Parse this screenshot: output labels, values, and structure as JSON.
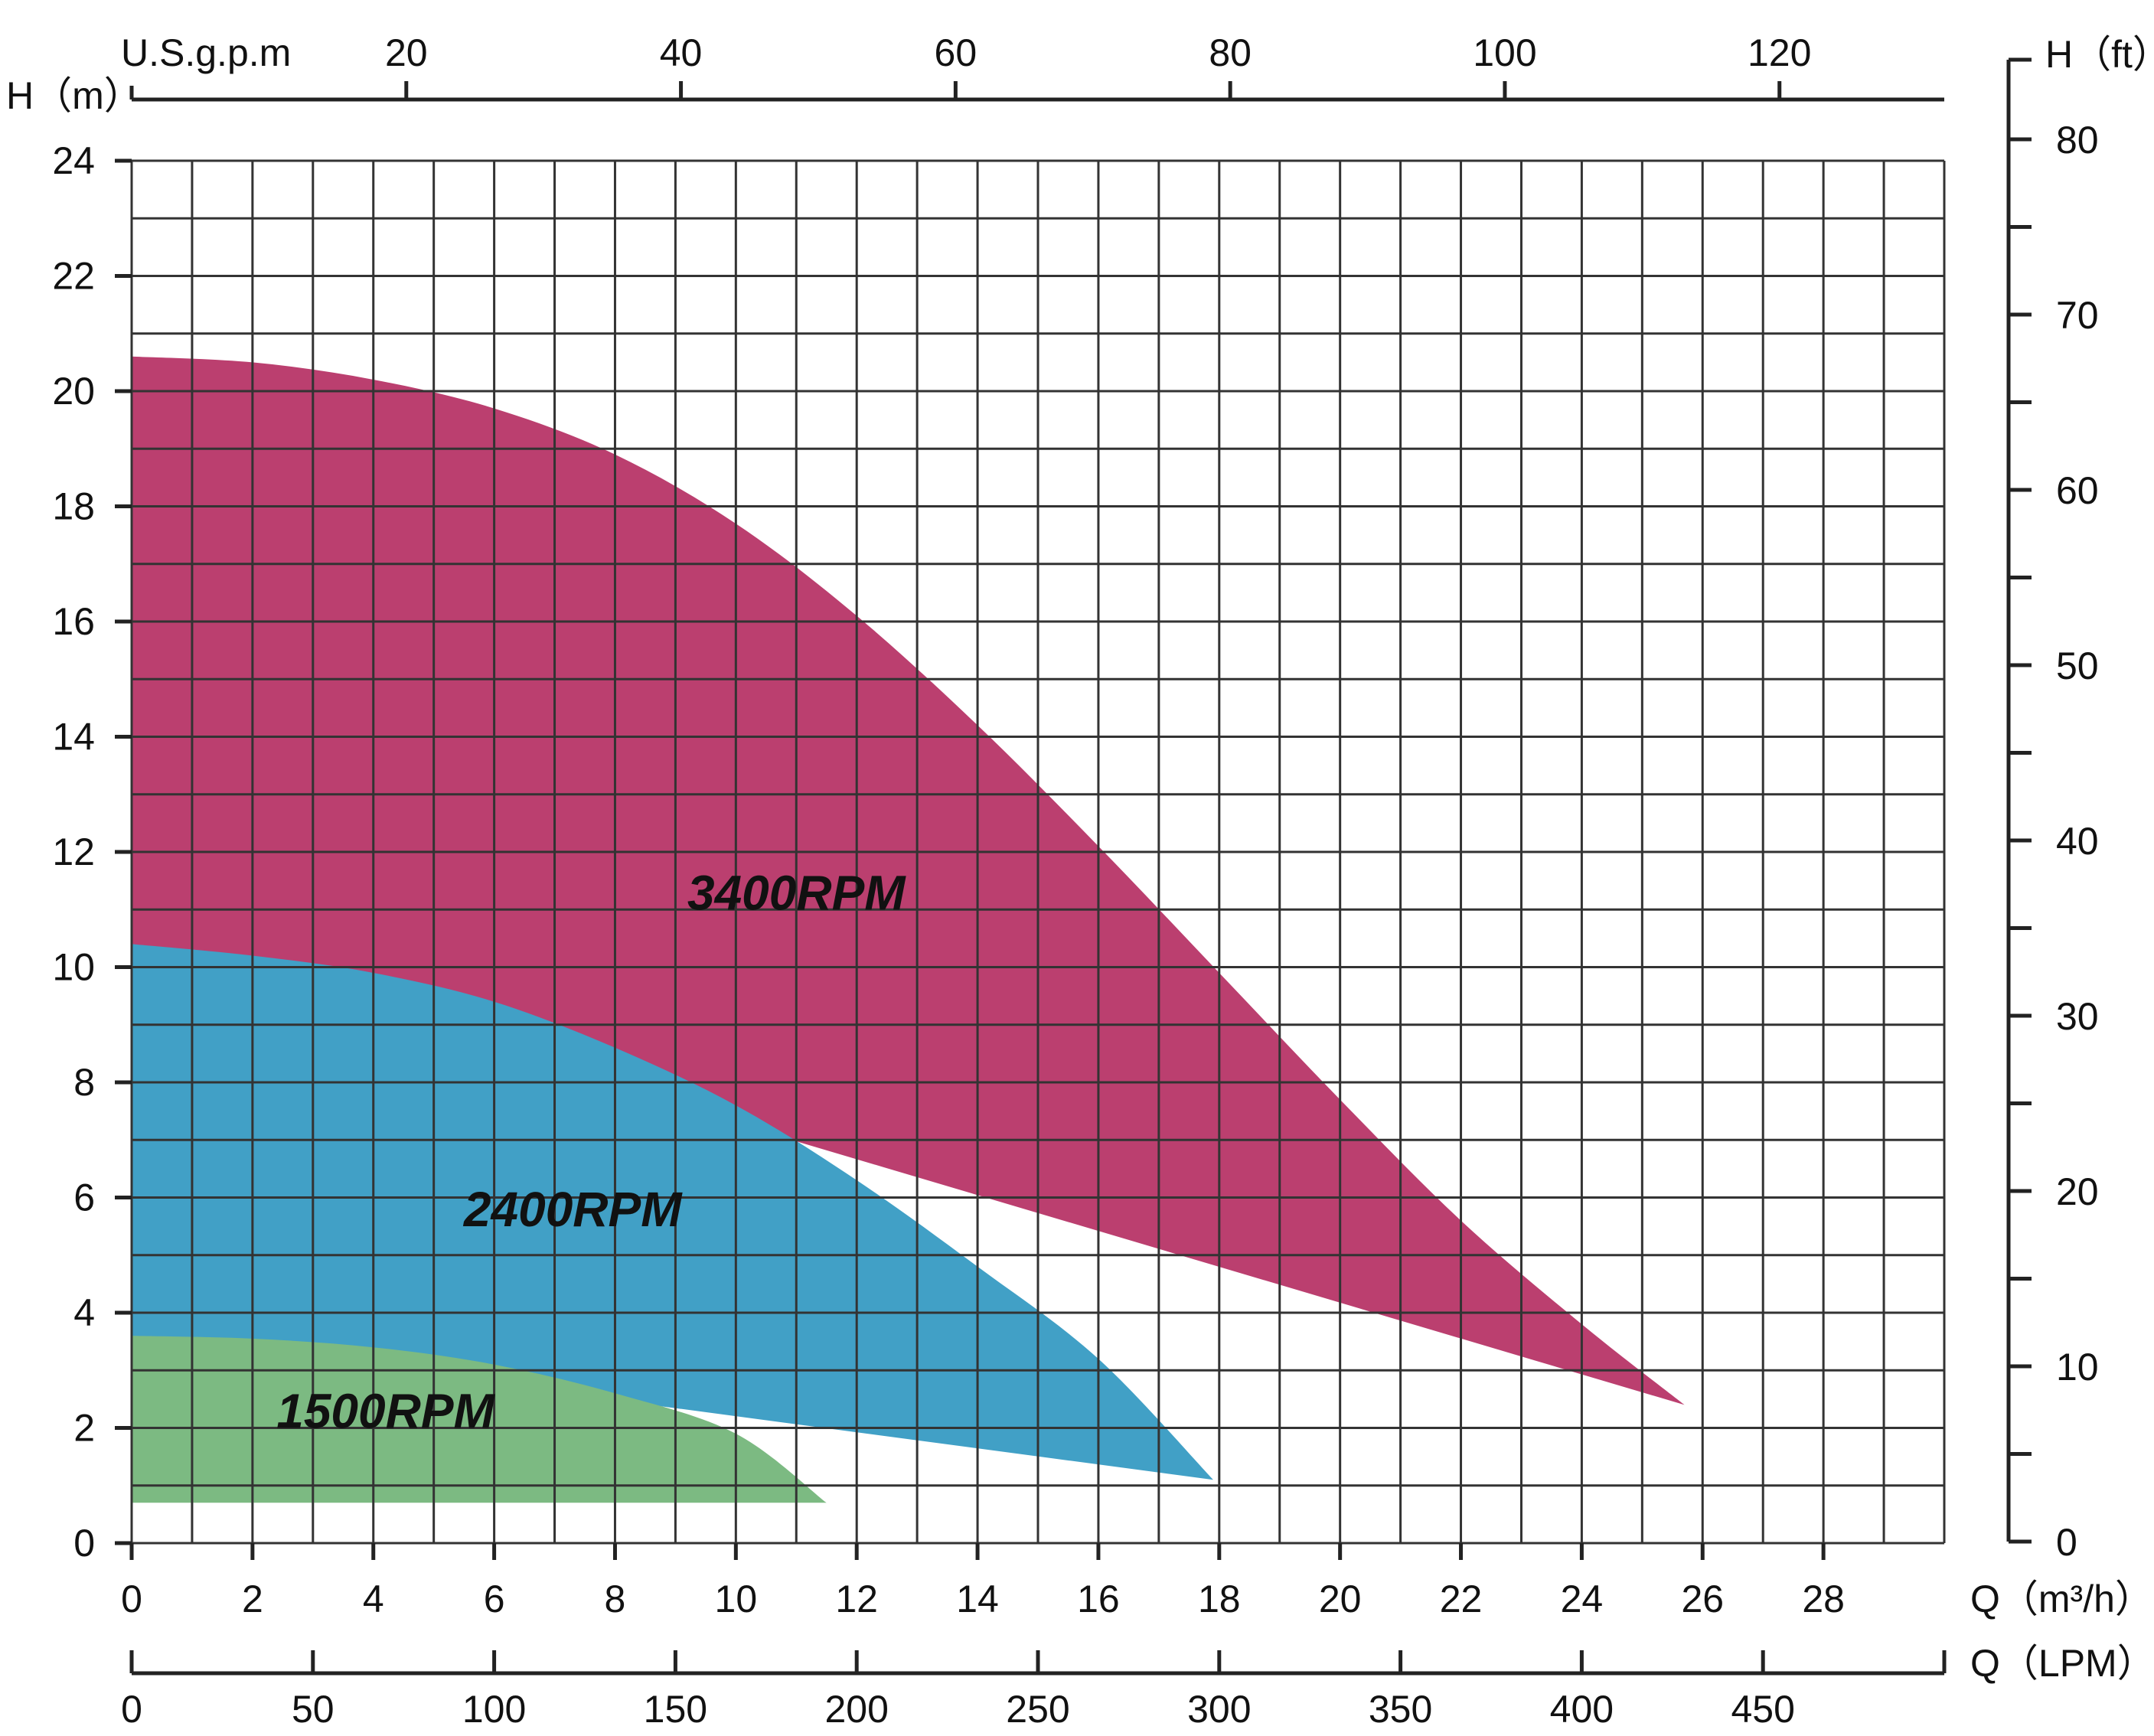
{
  "chart_data": {
    "type": "area",
    "title": "",
    "axes": {
      "left": {
        "label": "H（m）",
        "min": 0,
        "max": 24,
        "ticks": [
          0,
          2,
          4,
          6,
          8,
          10,
          12,
          14,
          16,
          18,
          20,
          22,
          24
        ]
      },
      "right": {
        "label": "H（ft）",
        "min": 0,
        "max": 80,
        "ticks": [
          0,
          10,
          20,
          30,
          40,
          50,
          60,
          70,
          80
        ]
      },
      "bottom": {
        "label": "Q（m³/h）",
        "min": 0,
        "max": 30,
        "ticks": [
          0,
          2,
          4,
          6,
          8,
          10,
          12,
          14,
          16,
          18,
          20,
          22,
          24,
          26,
          28
        ]
      },
      "bottom2": {
        "label": "Q（LPM）",
        "min": 0,
        "max": 500,
        "ticks": [
          0,
          50,
          100,
          150,
          200,
          250,
          300,
          350,
          400,
          450
        ]
      },
      "top": {
        "label": "U.S.g.p.m",
        "min": 0,
        "max": 132,
        "ticks": [
          20,
          40,
          60,
          80,
          100,
          120
        ]
      }
    },
    "grid": true,
    "series": [
      {
        "name": "3400RPM",
        "color": "#bb3f6f",
        "upper": [
          [
            0,
            20.6
          ],
          [
            2,
            20.5
          ],
          [
            4,
            20.2
          ],
          [
            6,
            19.7
          ],
          [
            8,
            18.9
          ],
          [
            10,
            17.7
          ],
          [
            12,
            16.1
          ],
          [
            14,
            14.2
          ],
          [
            16,
            12.1
          ],
          [
            18,
            9.9
          ],
          [
            20,
            7.7
          ],
          [
            22,
            5.6
          ],
          [
            24,
            3.8
          ],
          [
            25.7,
            2.4
          ]
        ],
        "lower": [
          [
            0,
            10.4
          ],
          [
            25.7,
            2.4
          ]
        ],
        "label_position": [
          11,
          11
        ]
      },
      {
        "name": "2400RPM",
        "color": "#41a0c6",
        "upper": [
          [
            0,
            10.4
          ],
          [
            2,
            10.2
          ],
          [
            4,
            9.9
          ],
          [
            6,
            9.4
          ],
          [
            8,
            8.6
          ],
          [
            10,
            7.6
          ],
          [
            12,
            6.3
          ],
          [
            14,
            4.8
          ],
          [
            16,
            3.2
          ],
          [
            17.9,
            1.1
          ]
        ],
        "lower": [
          [
            0,
            3.6
          ],
          [
            17.9,
            1.1
          ]
        ],
        "label_position": [
          7.3,
          5.5
        ]
      },
      {
        "name": "1500RPM",
        "color": "#7cba82",
        "upper": [
          [
            0,
            3.6
          ],
          [
            2,
            3.55
          ],
          [
            4,
            3.4
          ],
          [
            6,
            3.1
          ],
          [
            8,
            2.6
          ],
          [
            10,
            1.9
          ],
          [
            11.5,
            0.7
          ]
        ],
        "lower": [
          [
            0,
            0.7
          ],
          [
            11.5,
            0.7
          ]
        ],
        "label_position": [
          4.2,
          2.0
        ]
      }
    ]
  }
}
